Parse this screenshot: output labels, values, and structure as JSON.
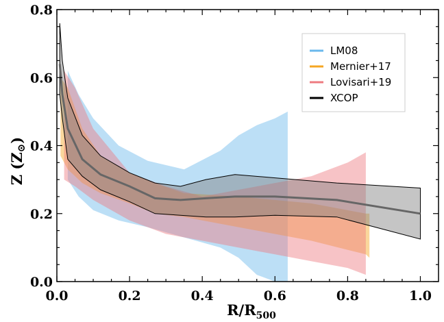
{
  "chart_data": {
    "type": "area",
    "xlabel": "R/R",
    "xlabel_sub": "500",
    "ylabel": "Z (Z",
    "ylabel_sub": "⊙",
    "ylabel_close": ")",
    "xlim": [
      0.0,
      1.05
    ],
    "ylim": [
      0.0,
      0.8
    ],
    "xticks": [
      0.0,
      0.2,
      0.4,
      0.6,
      0.8,
      1.0
    ],
    "xtick_labels": [
      "0.0",
      "0.2",
      "0.4",
      "0.6",
      "0.8",
      "1.0"
    ],
    "yticks": [
      0.0,
      0.2,
      0.4,
      0.6,
      0.8
    ],
    "ytick_labels": [
      "0.0",
      "0.2",
      "0.4",
      "0.6",
      "0.8"
    ],
    "grid": false,
    "legend_position": "top-right",
    "series": [
      {
        "name": "LM08",
        "color": "#6ab8ec",
        "style": "band",
        "x": [
          0.03,
          0.06,
          0.1,
          0.17,
          0.25,
          0.35,
          0.45,
          0.5,
          0.55,
          0.6,
          0.635
        ],
        "upper": [
          0.62,
          0.55,
          0.48,
          0.4,
          0.355,
          0.33,
          0.385,
          0.43,
          0.46,
          0.48,
          0.5
        ],
        "lower": [
          0.3,
          0.25,
          0.21,
          0.18,
          0.16,
          0.13,
          0.1,
          0.07,
          0.02,
          0.0,
          0.0
        ]
      },
      {
        "name": "Mernier+17",
        "color": "#f5a623",
        "style": "band",
        "x": [
          0.01,
          0.03,
          0.07,
          0.12,
          0.2,
          0.27,
          0.35,
          0.5,
          0.7,
          0.85,
          0.86
        ],
        "upper": [
          0.6,
          0.57,
          0.45,
          0.37,
          0.32,
          0.29,
          0.26,
          0.25,
          0.23,
          0.2,
          0.2
        ],
        "lower": [
          0.37,
          0.33,
          0.29,
          0.26,
          0.23,
          0.2,
          0.19,
          0.16,
          0.12,
          0.08,
          0.07
        ]
      },
      {
        "name": "Lovisari+19",
        "color": "#ee7b80",
        "style": "band",
        "x": [
          0.02,
          0.05,
          0.1,
          0.2,
          0.3,
          0.4,
          0.5,
          0.6,
          0.7,
          0.8,
          0.85
        ],
        "upper": [
          0.62,
          0.57,
          0.45,
          0.32,
          0.28,
          0.25,
          0.27,
          0.29,
          0.31,
          0.35,
          0.38
        ],
        "lower": [
          0.3,
          0.28,
          0.24,
          0.18,
          0.14,
          0.12,
          0.1,
          0.08,
          0.06,
          0.04,
          0.02
        ]
      },
      {
        "name": "XCOP",
        "color": "#000000",
        "style": "band_with_median",
        "x": [
          0.008,
          0.015,
          0.03,
          0.07,
          0.12,
          0.2,
          0.27,
          0.34,
          0.41,
          0.49,
          0.6,
          0.77,
          1.0
        ],
        "upper": [
          0.76,
          0.65,
          0.54,
          0.43,
          0.37,
          0.32,
          0.29,
          0.28,
          0.3,
          0.315,
          0.305,
          0.29,
          0.275
        ],
        "median": [
          0.64,
          0.55,
          0.45,
          0.36,
          0.315,
          0.28,
          0.245,
          0.24,
          0.245,
          0.25,
          0.25,
          0.24,
          0.2
        ],
        "lower": [
          0.55,
          0.48,
          0.36,
          0.31,
          0.27,
          0.235,
          0.2,
          0.195,
          0.19,
          0.19,
          0.195,
          0.19,
          0.125
        ]
      }
    ]
  }
}
